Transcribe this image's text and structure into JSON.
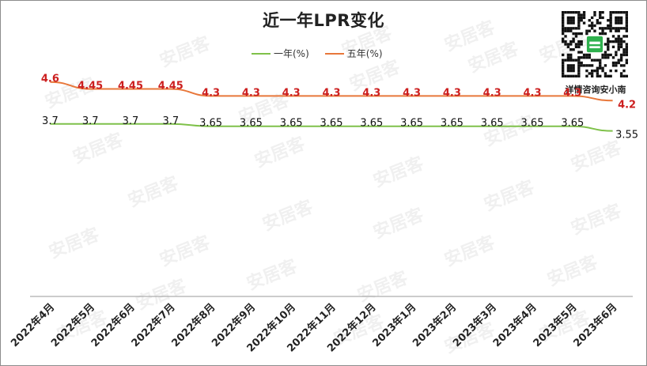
{
  "title": "近一年LPR变化",
  "qr_caption": "详情咨询安小南",
  "watermark_text": "安居客",
  "colors": {
    "one_year": "#7fc14a",
    "five_year": "#e8773a",
    "label_one_year": "#111111",
    "label_five_year": "#cc1f1f"
  },
  "chart_data": {
    "type": "line",
    "title": "近一年LPR变化",
    "categories": [
      "2022年4月",
      "2022年5月",
      "2022年6月",
      "2022年7月",
      "2022年8月",
      "2022年9月",
      "2022年10月",
      "2022年11月",
      "2022年12月",
      "2023年1月",
      "2023年2月",
      "2023年3月",
      "2023年4月",
      "2023年5月",
      "2023年6月"
    ],
    "series": [
      {
        "name": "一年(%)",
        "values": [
          3.7,
          3.7,
          3.7,
          3.7,
          3.65,
          3.65,
          3.65,
          3.65,
          3.65,
          3.65,
          3.65,
          3.65,
          3.65,
          3.65,
          3.55
        ],
        "labels": [
          "3.7",
          "3.7",
          "3.7",
          "3.7",
          "3.65",
          "3.65",
          "3.65",
          "3.65",
          "3.65",
          "3.65",
          "3.65",
          "3.65",
          "3.65",
          "3.65",
          "3.55"
        ]
      },
      {
        "name": "五年(%)",
        "values": [
          4.6,
          4.45,
          4.45,
          4.45,
          4.3,
          4.3,
          4.3,
          4.3,
          4.3,
          4.3,
          4.3,
          4.3,
          4.3,
          4.3,
          4.2
        ],
        "labels": [
          "4.6",
          "4.45",
          "4.45",
          "4.45",
          "4.3",
          "4.3",
          "4.3",
          "4.3",
          "4.3",
          "4.3",
          "4.3",
          "4.3",
          "4.3",
          "4.3",
          "4.2"
        ]
      }
    ],
    "legend_position": "top",
    "grid": false,
    "ylim": [
      0,
      4.9
    ]
  }
}
